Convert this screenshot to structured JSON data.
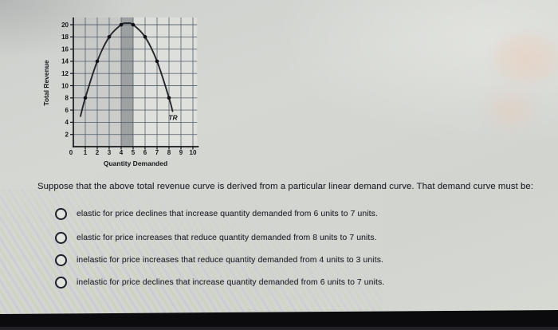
{
  "page": {
    "question": "Suppose that the above total revenue curve is derived from a particular linear demand curve. That demand curve must be:",
    "options": [
      {
        "label": "elastic for price declines that increase quantity demanded from 6 units to 7 units."
      },
      {
        "label": "elastic for price increases that reduce quantity demanded from 8 units to 7 units."
      },
      {
        "label": "inelastic for price increases that reduce quantity demanded from 4 units to 3 units."
      },
      {
        "label": "inelastic for price declines that increase quantity demanded from 6 units to 7 units."
      }
    ]
  },
  "chart_data": {
    "type": "line",
    "title": "",
    "xlabel": "Quantity Demanded",
    "ylabel": "Total Revenue",
    "curve_label": "TR",
    "x": [
      1,
      2,
      3,
      4,
      5,
      6,
      7,
      8
    ],
    "values": [
      8,
      14,
      18,
      20,
      20,
      18,
      14,
      8
    ],
    "curve_points": [
      [
        0.6,
        5.0
      ],
      [
        1,
        8
      ],
      [
        2,
        14
      ],
      [
        3,
        18
      ],
      [
        4,
        20
      ],
      [
        4.5,
        20.25
      ],
      [
        5,
        20
      ],
      [
        6,
        18
      ],
      [
        7,
        14
      ],
      [
        8,
        8
      ],
      [
        8.3,
        5.8
      ]
    ],
    "xlim": [
      0,
      10.35
    ],
    "ylim": [
      0,
      21.2
    ],
    "x_ticks": [
      0,
      1,
      2,
      3,
      4,
      5,
      6,
      7,
      8,
      9,
      10
    ],
    "y_ticks": [
      2,
      4,
      6,
      8,
      10,
      12,
      14,
      16,
      18,
      20
    ],
    "grid": true,
    "legend_position": "none",
    "shaded_regions": [
      {
        "x0": 0,
        "x1": 4,
        "shade": "light"
      },
      {
        "x0": 4,
        "x1": 5,
        "shade": "dark"
      }
    ],
    "tr_label_pos": [
      7.95,
      4.4
    ],
    "colors": {
      "curve": "#26262b",
      "grid": "#4e5a66",
      "axis": "#17181d",
      "point": "#101014",
      "text": "#16181c",
      "plot_bg": "rgba(248,249,246,0.30)",
      "shade_light": "rgba(105,108,112,0.16)",
      "shade_dark": "rgba(70,73,80,0.42)"
    }
  }
}
